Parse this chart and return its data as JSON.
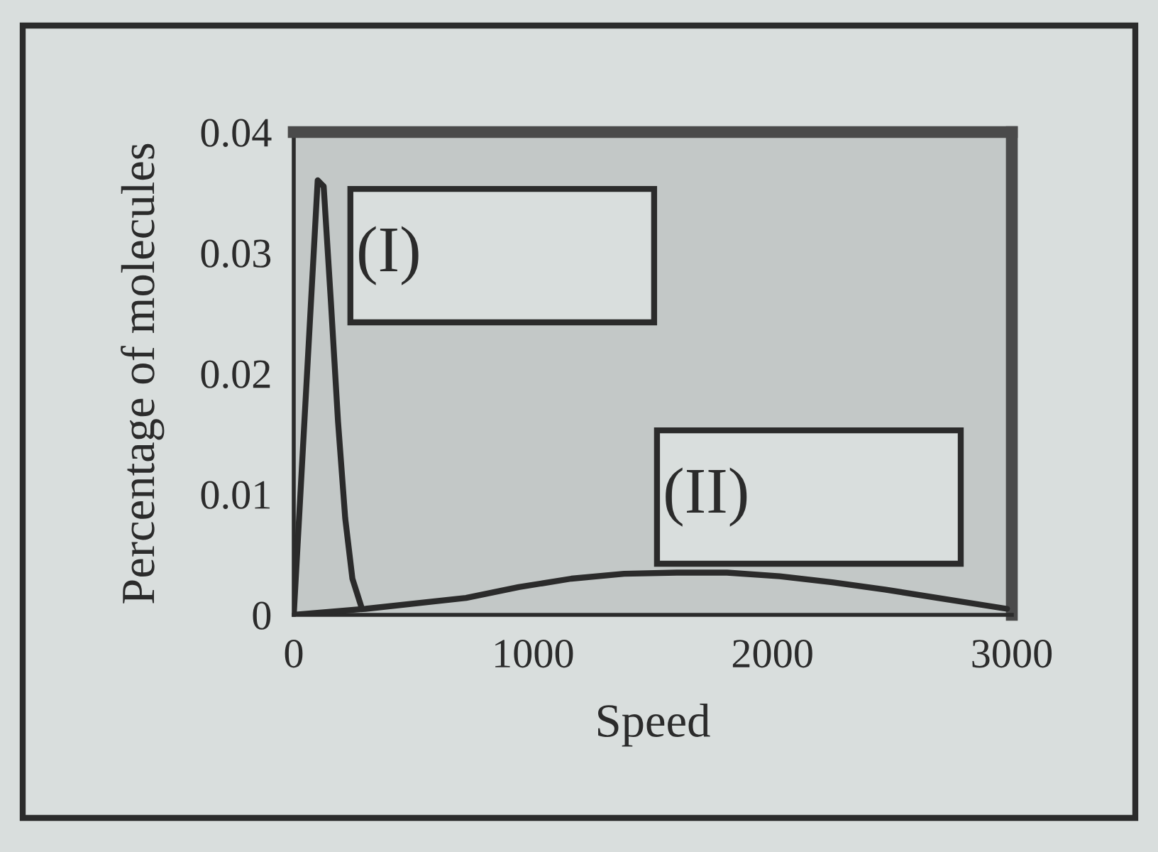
{
  "chart_data": {
    "type": "line",
    "xlabel": "Speed",
    "ylabel": "Percentage of molecules",
    "xlim": [
      0,
      3000
    ],
    "ylim": [
      0,
      0.04
    ],
    "xticks": [
      0,
      1000,
      2000,
      3000
    ],
    "yticks": [
      0,
      0.01,
      0.02,
      0.03,
      0.04
    ],
    "series": [
      {
        "name": "(I)",
        "color": "#2b2b2b",
        "x": [
          0,
          100,
          125,
          155,
          185,
          215,
          245,
          285
        ],
        "values": [
          0,
          0.036,
          0.0355,
          0.026,
          0.016,
          0.008,
          0.003,
          0.0005
        ]
      },
      {
        "name": "(II)",
        "color": "#2b2b2b",
        "x": [
          0,
          300,
          720,
          940,
          1160,
          1380,
          1600,
          1810,
          2030,
          2250,
          2470,
          2690,
          2980
        ],
        "values": [
          0,
          0.0005,
          0.0014,
          0.0023,
          0.003,
          0.0034,
          0.0035,
          0.0035,
          0.0032,
          0.0027,
          0.0021,
          0.0014,
          0.0005
        ]
      }
    ]
  }
}
